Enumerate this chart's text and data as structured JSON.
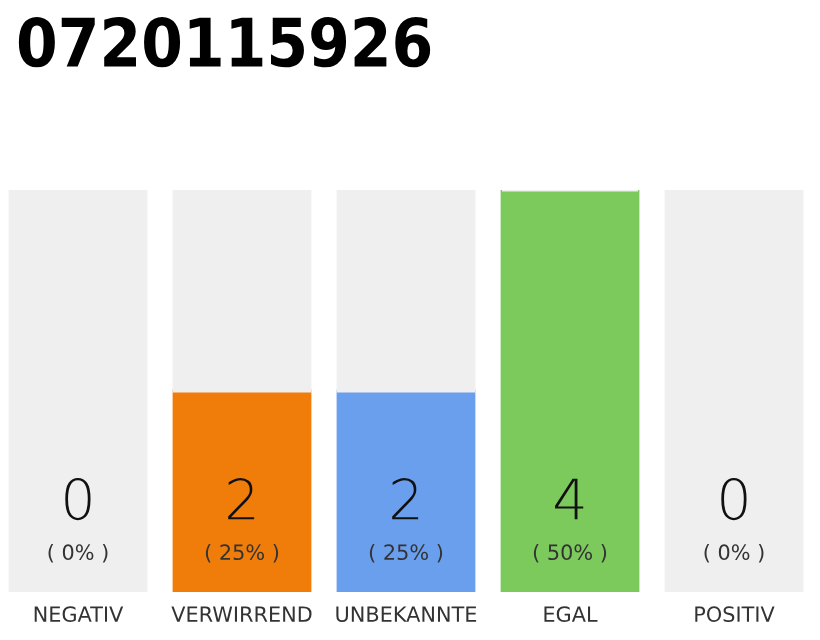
{
  "chart_data": {
    "type": "bar",
    "title": "0720115926",
    "stacked": true,
    "categories": [
      "NEGATIV",
      "VERWIRREND",
      "UNBEKANNTE",
      "EGAL",
      "POSITIV"
    ],
    "series": [
      {
        "colors": [
          "#e8203a",
          "#f07d0a",
          "#6a9fee",
          "#7cc95c",
          "#22a050"
        ],
        "values": [
          0,
          2,
          2,
          4,
          0
        ],
        "value_labels": [
          "0\n( 0% )",
          "2\n( 25% )",
          "2\n( 25% )",
          "4\n( 50% )",
          "0\n( 0% )"
        ]
      },
      {
        "color": "#efefef",
        "values": [
          4,
          2,
          2,
          0,
          4
        ]
      }
    ],
    "tick_labels": "x"
  }
}
